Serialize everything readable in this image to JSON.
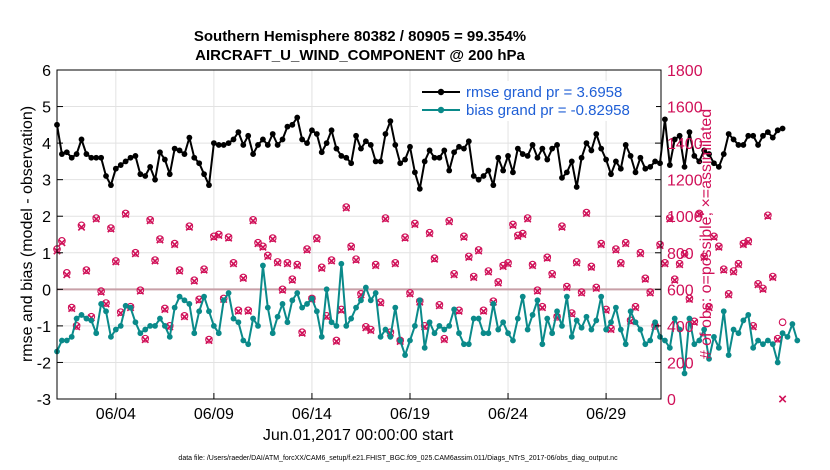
{
  "chart_data": {
    "type": "line",
    "title": "Southern Hemisphere 80382 / 80905 = 99.354%",
    "subtitle": "AIRCRAFT_U_WIND_COMPONENT @ 200 hPa",
    "xlabel": "Jun.01,2017 00:00:00 start",
    "ylabel": "rmse and bias (model - observation)",
    "y2label": "# of obs: o=possible; ×=assimilated",
    "xlim": [
      1,
      31.8
    ],
    "ylim": [
      -3,
      6
    ],
    "y2lim": [
      0,
      1800
    ],
    "x_ticks": [
      4,
      9,
      14,
      19,
      24,
      29
    ],
    "x_tick_labels": [
      "06/04",
      "06/09",
      "06/14",
      "06/19",
      "06/24",
      "06/29"
    ],
    "y_ticks": [
      -3,
      -2,
      -1,
      0,
      1,
      2,
      3,
      4,
      5,
      6
    ],
    "y_tick_labels": [
      "-3",
      "-2",
      "-1",
      "0",
      "1",
      "2",
      "3",
      "4",
      "5",
      "6"
    ],
    "y2_ticks": [
      0,
      200,
      400,
      600,
      800,
      1000,
      1200,
      1400,
      1600,
      1800
    ],
    "y2_tick_labels": [
      "0",
      "200",
      "400",
      "600",
      "800",
      "1000",
      "1200",
      "1400",
      "1600",
      "1800"
    ],
    "grid": true,
    "legend_position": "top-right",
    "x_step": 0.25,
    "series": [
      {
        "name": "rmse grand pr = 3.6958",
        "color": "#000000",
        "marker": "circle",
        "axis": "left",
        "values": [
          4.5,
          3.7,
          3.75,
          3.6,
          3.7,
          4.1,
          3.7,
          3.6,
          3.6,
          3.6,
          3.1,
          2.85,
          3.3,
          3.4,
          3.5,
          3.6,
          3.65,
          3.15,
          3.1,
          3.35,
          3.0,
          3.75,
          3.55,
          3.15,
          3.85,
          3.8,
          3.7,
          4.15,
          3.6,
          3.45,
          3.15,
          2.85,
          4.0,
          3.95,
          3.95,
          4.0,
          4.1,
          4.3,
          3.95,
          4.2,
          3.7,
          3.95,
          4.1,
          3.95,
          4.25,
          3.95,
          4.1,
          4.45,
          4.5,
          4.7,
          4.1,
          4.0,
          4.35,
          4.25,
          3.75,
          4.0,
          4.35,
          3.85,
          3.65,
          3.6,
          3.45,
          4.2,
          3.85,
          4.05,
          3.95,
          3.5,
          3.5,
          4.25,
          4.6,
          3.95,
          3.45,
          3.55,
          3.9,
          3.2,
          2.75,
          3.5,
          3.8,
          3.6,
          3.6,
          3.8,
          3.25,
          3.75,
          3.9,
          3.85,
          4.05,
          3.1,
          3.0,
          3.1,
          3.25,
          2.85,
          3.6,
          3.25,
          3.65,
          3.2,
          3.85,
          3.7,
          3.65,
          3.95,
          3.6,
          3.85,
          3.55,
          3.85,
          3.95,
          3.05,
          3.2,
          3.5,
          2.8,
          3.6,
          4.0,
          3.8,
          4.25,
          3.85,
          3.55,
          3.15,
          3.5,
          3.3,
          3.95,
          3.65,
          3.2,
          3.6,
          3.3,
          3.35,
          3.5,
          3.45,
          4.65,
          3.4,
          4.1,
          4.2,
          3.35,
          4.3,
          3.65,
          3.5,
          3.8,
          3.7,
          3.45,
          3.35,
          3.7,
          4.25,
          4.1,
          3.95,
          3.95,
          4.2,
          4.2,
          3.95,
          4.2,
          4.3,
          4.15,
          4.35,
          4.4
        ]
      },
      {
        "name": "bias grand pr = -0.82958",
        "color": "#0a8a8a",
        "marker": "circle",
        "axis": "left",
        "values": [
          -1.7,
          -1.4,
          -1.4,
          -1.3,
          -0.8,
          -0.7,
          -0.8,
          -0.85,
          -1.2,
          -0.4,
          -0.6,
          -1.3,
          -1.1,
          -1.0,
          -0.45,
          -0.5,
          -0.9,
          -1.2,
          -1.1,
          -1.0,
          -1.0,
          -0.8,
          -1.0,
          -1.3,
          -0.5,
          -0.2,
          -0.3,
          -0.4,
          -1.2,
          -0.6,
          -0.2,
          -0.6,
          -1.0,
          -1.2,
          -0.3,
          -0.1,
          -0.8,
          -0.9,
          -1.4,
          -1.5,
          -0.8,
          -1.0,
          0.65,
          -0.5,
          -1.2,
          -0.75,
          -0.4,
          -0.9,
          -0.3,
          -0.1,
          -0.5,
          -0.4,
          -0.25,
          -0.6,
          -1.3,
          0.0,
          -0.9,
          -1.0,
          0.7,
          -1.0,
          -0.8,
          -0.5,
          -0.3,
          0.05,
          -0.3,
          -0.1,
          -1.3,
          -1.1,
          -1.3,
          -0.5,
          -1.4,
          -1.8,
          -1.4,
          -1.0,
          -0.3,
          -1.6,
          -0.9,
          -1.2,
          -1.0,
          -1.1,
          -1.0,
          -0.55,
          -1.2,
          -1.5,
          -1.5,
          -0.8,
          -0.8,
          -1.2,
          -1.2,
          -0.4,
          -1.1,
          -0.9,
          -1.2,
          -1.4,
          -0.8,
          -0.2,
          -1.1,
          -0.7,
          -0.3,
          -1.5,
          -0.8,
          -1.2,
          -0.6,
          -1.0,
          -0.2,
          -1.3,
          -0.85,
          -1.05,
          -0.75,
          -1.1,
          -0.85,
          -0.2,
          -1.1,
          -0.9,
          -0.5,
          -1.1,
          -1.5,
          -0.6,
          -0.9,
          -1.1,
          -1.5,
          -1.4,
          -0.9,
          -1.3,
          -1.4,
          -1.6,
          -0.8,
          -1.1,
          -2.3,
          -0.8,
          -1.5,
          -1.4,
          -1.1,
          -1.9,
          -1.3,
          -1.6,
          -0.6,
          -1.8,
          -1.1,
          -1.2,
          -0.85,
          -0.7,
          -1.6,
          -1.4,
          -1.5,
          -1.4,
          -1.5,
          -2.0,
          -1.2,
          -1.3,
          -0.95,
          -1.4
        ]
      },
      {
        "name": "# of obs possible",
        "color": "#d01058",
        "marker": "o",
        "axis": "right",
        "values": [
          820,
          865,
          690,
          500,
          400,
          950,
          705,
          450,
          990,
          590,
          525,
          935,
          755,
          475,
          1015,
          505,
          800,
          595,
          330,
          980,
          760,
          875,
          495,
          400,
          850,
          705,
          455,
          945,
          650,
          545,
          710,
          325,
          890,
          900,
          550,
          885,
          745,
          485,
          665,
          485,
          980,
          855,
          835,
          785,
          880,
          750,
          600,
          745,
          655,
          735,
          365,
          820,
          550,
          880,
          720,
          455,
          760,
          320,
          490,
          1050,
          835,
          765,
          575,
          395,
          380,
          735,
          530,
          990,
          365,
          745,
          320,
          885,
          580,
          960,
          535,
          400,
          910,
          770,
          515,
          330,
          975,
          685,
          485,
          890,
          780,
          670,
          815,
          485,
          700,
          535,
          640,
          730,
          745,
          955,
          895,
          905,
          990,
          735,
          595,
          505,
          775,
          685,
          450,
          945,
          615,
          470,
          750,
          585,
          1020,
          725,
          610,
          850,
          490,
          385,
          820,
          745,
          855,
          430,
          505,
          800,
          660,
          585,
          400,
          845,
          745,
          990,
          655,
          740,
          795,
          550,
          425,
          1015,
          780,
          505,
          890,
          835,
          710,
          575,
          700,
          740,
          850,
          865,
          400,
          630,
          605,
          1005,
          670,
          330,
          420
        ]
      },
      {
        "name": "# of obs assimilated",
        "color": "#d01058",
        "marker": "x",
        "axis": "right",
        "values": [
          810,
          855,
          680,
          495,
          395,
          940,
          700,
          445,
          985,
          585,
          520,
          930,
          750,
          470,
          1010,
          500,
          795,
          590,
          325,
          975,
          755,
          870,
          490,
          395,
          845,
          700,
          450,
          940,
          645,
          540,
          705,
          320,
          885,
          895,
          545,
          880,
          740,
          480,
          660,
          480,
          975,
          850,
          830,
          780,
          875,
          745,
          595,
          740,
          650,
          730,
          360,
          815,
          545,
          875,
          715,
          450,
          755,
          315,
          485,
          1045,
          830,
          760,
          570,
          390,
          375,
          730,
          525,
          985,
          360,
          740,
          315,
          880,
          575,
          955,
          530,
          395,
          905,
          765,
          510,
          325,
          970,
          680,
          480,
          885,
          775,
          665,
          810,
          480,
          695,
          530,
          635,
          725,
          740,
          950,
          890,
          900,
          985,
          730,
          590,
          500,
          770,
          680,
          445,
          940,
          610,
          465,
          745,
          580,
          1015,
          720,
          605,
          845,
          485,
          380,
          815,
          740,
          850,
          425,
          500,
          795,
          655,
          580,
          395,
          840,
          740,
          985,
          650,
          735,
          790,
          545,
          420,
          1010,
          775,
          500,
          885,
          830,
          705,
          570,
          695,
          735,
          845,
          860,
          395,
          625,
          600,
          1000,
          665,
          325,
          0
        ]
      }
    ],
    "footnote": "data file: /Users/raeder/DAI/ATM_forcXX/CAM6_setup/f.e21.FHIST_BGC.f09_025.CAM6assim.011/Diags_NTrS_2017-06/obs_diag_output.nc"
  }
}
